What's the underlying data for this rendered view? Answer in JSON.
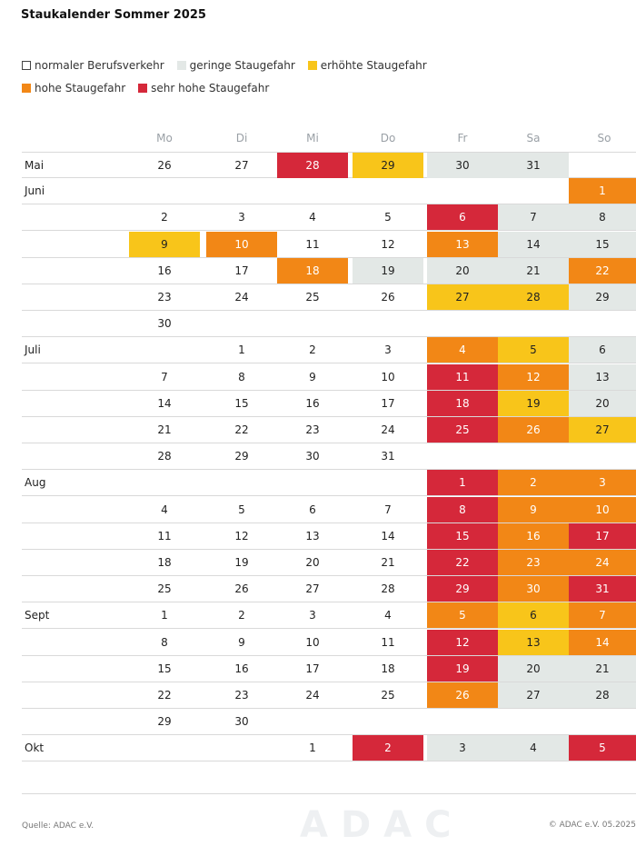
{
  "title": "Staukalender Sommer 2025",
  "legend": [
    {
      "key": "normal",
      "label": "normaler Berufsverkehr",
      "color": "#ffffff"
    },
    {
      "key": "geringe",
      "label": "geringe Staugefahr",
      "color": "#e3e8e6"
    },
    {
      "key": "erhoehte",
      "label": "erhöhte Staugefahr",
      "color": "#f8c51a"
    },
    {
      "key": "hohe",
      "label": "hohe Staugefahr",
      "color": "#f28716"
    },
    {
      "key": "sehrhohe",
      "label": "sehr hohe Staugefahr",
      "color": "#d5283a"
    }
  ],
  "weekdays": [
    "Mo",
    "Di",
    "Mi",
    "Do",
    "Fr",
    "Sa",
    "So"
  ],
  "rows": [
    {
      "month": "Mai",
      "days": [
        [
          0,
          "26",
          "normal"
        ],
        [
          1,
          "27",
          "normal"
        ],
        [
          2,
          "28",
          "sehrhohe"
        ],
        [
          3,
          "29",
          "erhoehte"
        ],
        [
          4,
          "30",
          "geringe"
        ],
        [
          5,
          "31",
          "geringe"
        ]
      ]
    },
    {
      "month": "Juni",
      "days": [
        [
          6,
          "1",
          "hohe"
        ]
      ]
    },
    {
      "month": "",
      "days": [
        [
          0,
          "2",
          "normal"
        ],
        [
          1,
          "3",
          "normal"
        ],
        [
          2,
          "4",
          "normal"
        ],
        [
          3,
          "5",
          "normal"
        ],
        [
          4,
          "6",
          "sehrhohe"
        ],
        [
          5,
          "7",
          "geringe"
        ],
        [
          6,
          "8",
          "geringe"
        ]
      ]
    },
    {
      "month": "",
      "days": [
        [
          0,
          "9",
          "erhoehte"
        ],
        [
          1,
          "10",
          "hohe"
        ],
        [
          2,
          "11",
          "normal"
        ],
        [
          3,
          "12",
          "normal"
        ],
        [
          4,
          "13",
          "hohe"
        ],
        [
          5,
          "14",
          "geringe"
        ],
        [
          6,
          "15",
          "geringe"
        ]
      ]
    },
    {
      "month": "",
      "days": [
        [
          0,
          "16",
          "normal"
        ],
        [
          1,
          "17",
          "normal"
        ],
        [
          2,
          "18",
          "hohe"
        ],
        [
          3,
          "19",
          "geringe"
        ],
        [
          4,
          "20",
          "geringe"
        ],
        [
          5,
          "21",
          "geringe"
        ],
        [
          6,
          "22",
          "hohe"
        ]
      ]
    },
    {
      "month": "",
      "days": [
        [
          0,
          "23",
          "normal"
        ],
        [
          1,
          "24",
          "normal"
        ],
        [
          2,
          "25",
          "normal"
        ],
        [
          3,
          "26",
          "normal"
        ],
        [
          4,
          "27",
          "erhoehte"
        ],
        [
          5,
          "28",
          "erhoehte"
        ],
        [
          6,
          "29",
          "geringe"
        ]
      ]
    },
    {
      "month": "",
      "days": [
        [
          0,
          "30",
          "normal"
        ]
      ]
    },
    {
      "month": "Juli",
      "days": [
        [
          1,
          "1",
          "normal"
        ],
        [
          2,
          "2",
          "normal"
        ],
        [
          3,
          "3",
          "normal"
        ],
        [
          4,
          "4",
          "hohe"
        ],
        [
          5,
          "5",
          "erhoehte"
        ],
        [
          6,
          "6",
          "geringe"
        ]
      ]
    },
    {
      "month": "",
      "days": [
        [
          0,
          "7",
          "normal"
        ],
        [
          1,
          "8",
          "normal"
        ],
        [
          2,
          "9",
          "normal"
        ],
        [
          3,
          "10",
          "normal"
        ],
        [
          4,
          "11",
          "sehrhohe"
        ],
        [
          5,
          "12",
          "hohe"
        ],
        [
          6,
          "13",
          "geringe"
        ]
      ]
    },
    {
      "month": "",
      "days": [
        [
          0,
          "14",
          "normal"
        ],
        [
          1,
          "15",
          "normal"
        ],
        [
          2,
          "16",
          "normal"
        ],
        [
          3,
          "17",
          "normal"
        ],
        [
          4,
          "18",
          "sehrhohe"
        ],
        [
          5,
          "19",
          "erhoehte"
        ],
        [
          6,
          "20",
          "geringe"
        ]
      ]
    },
    {
      "month": "",
      "days": [
        [
          0,
          "21",
          "normal"
        ],
        [
          1,
          "22",
          "normal"
        ],
        [
          2,
          "23",
          "normal"
        ],
        [
          3,
          "24",
          "normal"
        ],
        [
          4,
          "25",
          "sehrhohe"
        ],
        [
          5,
          "26",
          "hohe"
        ],
        [
          6,
          "27",
          "erhoehte"
        ]
      ]
    },
    {
      "month": "",
      "days": [
        [
          0,
          "28",
          "normal"
        ],
        [
          1,
          "29",
          "normal"
        ],
        [
          2,
          "30",
          "normal"
        ],
        [
          3,
          "31",
          "normal"
        ]
      ]
    },
    {
      "month": "Aug",
      "days": [
        [
          4,
          "1",
          "sehrhohe"
        ],
        [
          5,
          "2",
          "hohe"
        ],
        [
          6,
          "3",
          "hohe"
        ]
      ]
    },
    {
      "month": "",
      "days": [
        [
          0,
          "4",
          "normal"
        ],
        [
          1,
          "5",
          "normal"
        ],
        [
          2,
          "6",
          "normal"
        ],
        [
          3,
          "7",
          "normal"
        ],
        [
          4,
          "8",
          "sehrhohe"
        ],
        [
          5,
          "9",
          "hohe"
        ],
        [
          6,
          "10",
          "hohe"
        ]
      ]
    },
    {
      "month": "",
      "days": [
        [
          0,
          "11",
          "normal"
        ],
        [
          1,
          "12",
          "normal"
        ],
        [
          2,
          "13",
          "normal"
        ],
        [
          3,
          "14",
          "normal"
        ],
        [
          4,
          "15",
          "sehrhohe"
        ],
        [
          5,
          "16",
          "hohe"
        ],
        [
          6,
          "17",
          "sehrhohe"
        ]
      ]
    },
    {
      "month": "",
      "days": [
        [
          0,
          "18",
          "normal"
        ],
        [
          1,
          "19",
          "normal"
        ],
        [
          2,
          "20",
          "normal"
        ],
        [
          3,
          "21",
          "normal"
        ],
        [
          4,
          "22",
          "sehrhohe"
        ],
        [
          5,
          "23",
          "hohe"
        ],
        [
          6,
          "24",
          "hohe"
        ]
      ]
    },
    {
      "month": "",
      "days": [
        [
          0,
          "25",
          "normal"
        ],
        [
          1,
          "26",
          "normal"
        ],
        [
          2,
          "27",
          "normal"
        ],
        [
          3,
          "28",
          "normal"
        ],
        [
          4,
          "29",
          "sehrhohe"
        ],
        [
          5,
          "30",
          "hohe"
        ],
        [
          6,
          "31",
          "sehrhohe"
        ]
      ]
    },
    {
      "month": "Sept",
      "days": [
        [
          0,
          "1",
          "normal"
        ],
        [
          1,
          "2",
          "normal"
        ],
        [
          2,
          "3",
          "normal"
        ],
        [
          3,
          "4",
          "normal"
        ],
        [
          4,
          "5",
          "hohe"
        ],
        [
          5,
          "6",
          "erhoehte"
        ],
        [
          6,
          "7",
          "hohe"
        ]
      ]
    },
    {
      "month": "",
      "days": [
        [
          0,
          "8",
          "normal"
        ],
        [
          1,
          "9",
          "normal"
        ],
        [
          2,
          "10",
          "normal"
        ],
        [
          3,
          "11",
          "normal"
        ],
        [
          4,
          "12",
          "sehrhohe"
        ],
        [
          5,
          "13",
          "erhoehte"
        ],
        [
          6,
          "14",
          "hohe"
        ]
      ]
    },
    {
      "month": "",
      "days": [
        [
          0,
          "15",
          "normal"
        ],
        [
          1,
          "16",
          "normal"
        ],
        [
          2,
          "17",
          "normal"
        ],
        [
          3,
          "18",
          "normal"
        ],
        [
          4,
          "19",
          "sehrhohe"
        ],
        [
          5,
          "20",
          "geringe"
        ],
        [
          6,
          "21",
          "geringe"
        ]
      ]
    },
    {
      "month": "",
      "days": [
        [
          0,
          "22",
          "normal"
        ],
        [
          1,
          "23",
          "normal"
        ],
        [
          2,
          "24",
          "normal"
        ],
        [
          3,
          "25",
          "normal"
        ],
        [
          4,
          "26",
          "hohe"
        ],
        [
          5,
          "27",
          "geringe"
        ],
        [
          6,
          "28",
          "geringe"
        ]
      ]
    },
    {
      "month": "",
      "days": [
        [
          0,
          "29",
          "normal"
        ],
        [
          1,
          "30",
          "normal"
        ]
      ]
    },
    {
      "month": "Okt",
      "days": [
        [
          2,
          "1",
          "normal"
        ],
        [
          3,
          "2",
          "sehrhohe"
        ],
        [
          4,
          "3",
          "geringe"
        ],
        [
          5,
          "4",
          "geringe"
        ],
        [
          6,
          "5",
          "sehrhohe"
        ]
      ]
    }
  ],
  "source": "Quelle: ADAC e.V.",
  "copyright": "© ADAC e.V. 05.2025",
  "watermark": "ADAC"
}
